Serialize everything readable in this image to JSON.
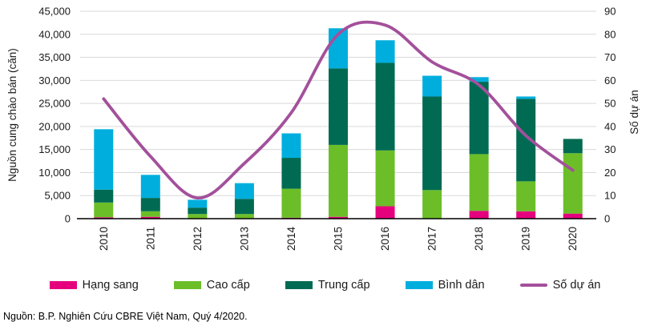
{
  "chart_data": {
    "type": "bar",
    "subtype": "stacked-bars-with-line-overlay",
    "categories": [
      "2010",
      "2011",
      "2012",
      "2013",
      "2014",
      "2015",
      "2016",
      "2017",
      "2018",
      "2019",
      "2020"
    ],
    "series": [
      {
        "name": "Hạng sang",
        "kind": "bar",
        "color": "#E5007D",
        "values": [
          300,
          400,
          100,
          100,
          200,
          400,
          2700,
          0,
          1700,
          1600,
          1100
        ]
      },
      {
        "name": "Cao cấp",
        "kind": "bar",
        "color": "#6CBE28",
        "values": [
          3200,
          1200,
          900,
          900,
          6300,
          15600,
          12100,
          6200,
          12300,
          6500,
          13100
        ]
      },
      {
        "name": "Trung cấp",
        "kind": "bar",
        "color": "#006B52",
        "values": [
          2800,
          2900,
          1400,
          3300,
          6700,
          16600,
          19000,
          20300,
          15700,
          17900,
          3100
        ]
      },
      {
        "name": "Bình dân",
        "kind": "bar",
        "color": "#00AEDE",
        "values": [
          13100,
          5000,
          1700,
          3400,
          5300,
          8700,
          4900,
          4500,
          1000,
          500,
          0
        ]
      },
      {
        "name": "Số dự án",
        "kind": "line",
        "color": "#A3509B",
        "axis": "right",
        "values": [
          52,
          27,
          9,
          24,
          46,
          80,
          84,
          68,
          58,
          36,
          21
        ]
      }
    ],
    "left_axis": {
      "label": "Nguồn cung chào bán (căn)",
      "min": 0,
      "max": 45000,
      "step": 5000
    },
    "right_axis": {
      "label": "Số dự án",
      "min": 0,
      "max": 90,
      "step": 10
    },
    "grid": true,
    "gridline_color": "#D9D9D9",
    "axis_line_color": "#000000",
    "tick_text_color": "#1a1a1a",
    "legend_position": "bottom",
    "x_tick_rotation_deg": 90
  },
  "legend": {
    "items": [
      {
        "label": "Hạng sang"
      },
      {
        "label": "Cao cấp"
      },
      {
        "label": "Trung cấp"
      },
      {
        "label": "Bình dân"
      },
      {
        "label": "Số dự án"
      }
    ]
  },
  "source_note": "Nguồn: B.P. Nghiên Cứu CBRE Việt Nam, Quý 4/2020."
}
